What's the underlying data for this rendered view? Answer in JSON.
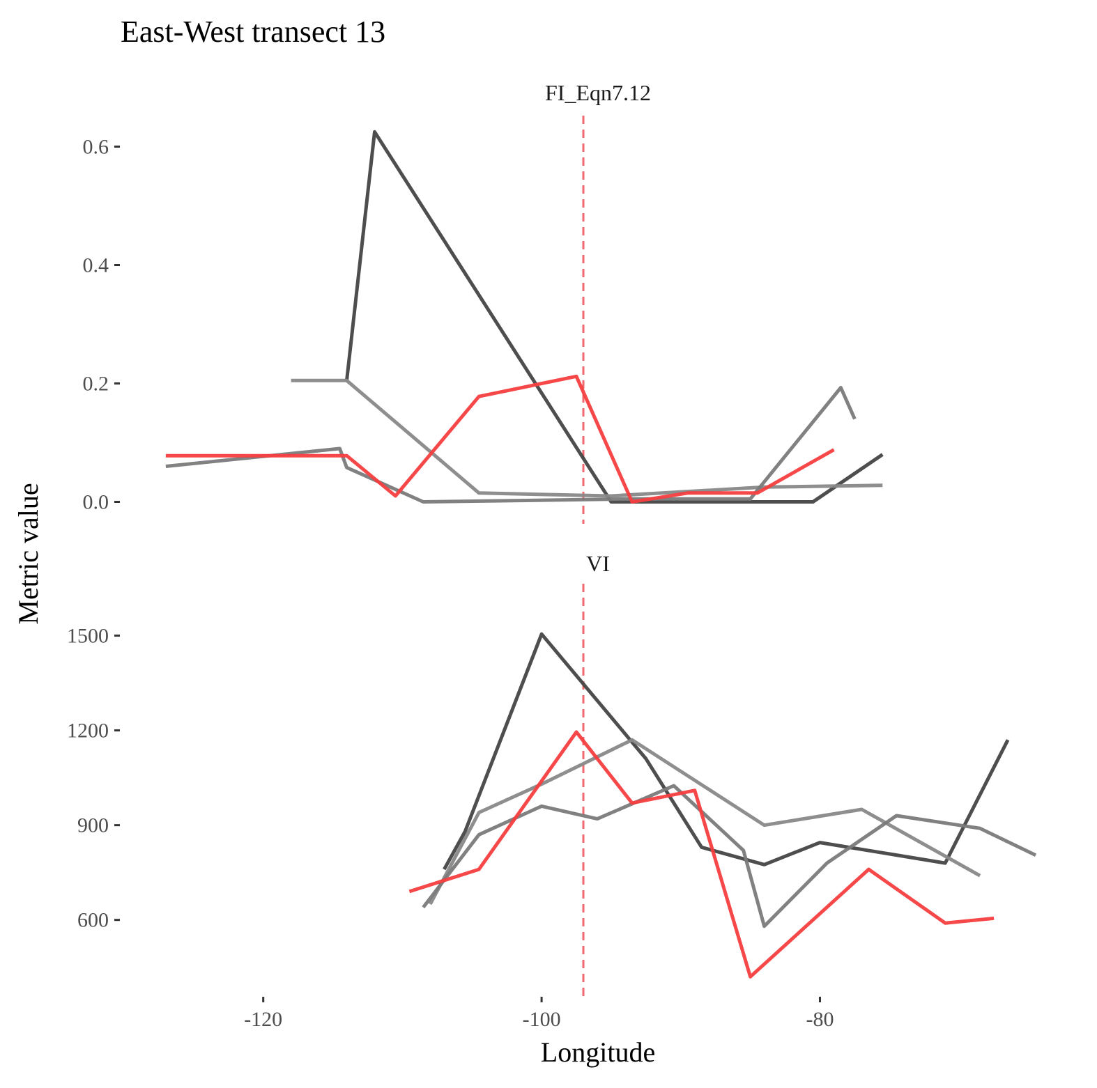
{
  "chart_data": {
    "type": "line",
    "title": "East-West transect 13",
    "xlabel": "Longitude",
    "ylabel": "Metric value",
    "xlim": [
      -130,
      -64
    ],
    "x_ticks": [
      -120,
      -100,
      -80
    ],
    "x_tick_labels": [
      "-120",
      "-100",
      "-80"
    ],
    "reference_line": {
      "x": -97,
      "color": "#f0696e",
      "style": "dashed"
    },
    "grid": false,
    "legend": "none",
    "panels": [
      {
        "strip_label": "FI_Eqn7.12",
        "ylim": [
          -0.03,
          0.65
        ],
        "y_ticks": [
          0.0,
          0.2,
          0.4,
          0.6
        ],
        "y_tick_labels": [
          "0.0",
          "0.2",
          "0.4",
          "0.6"
        ],
        "series": [
          {
            "color": "#444444",
            "points": [
              [
                -114,
                0.205
              ],
              [
                -112,
                0.625
              ],
              [
                -95,
                0.0
              ],
              [
                -80.5,
                0.0
              ],
              [
                -75.5,
                0.08
              ]
            ]
          },
          {
            "color": "#888888",
            "points": [
              [
                -118,
                0.205
              ],
              [
                -114,
                0.205
              ],
              [
                -104.5,
                0.015
              ],
              [
                -95,
                0.01
              ],
              [
                -84,
                0.025
              ],
              [
                -75.5,
                0.028
              ]
            ]
          },
          {
            "color": "#7a7a7a",
            "points": [
              [
                -127,
                0.06
              ],
              [
                -114.5,
                0.09
              ],
              [
                -114,
                0.058
              ],
              [
                -108.5,
                0.0
              ],
              [
                -93.5,
                0.005
              ],
              [
                -85,
                0.005
              ],
              [
                -78.5,
                0.193
              ],
              [
                -77.5,
                0.14
              ]
            ]
          },
          {
            "color": "#f53d3f",
            "points": [
              [
                -127,
                0.078
              ],
              [
                -114,
                0.078
              ],
              [
                -110.5,
                0.01
              ],
              [
                -104.5,
                0.178
              ],
              [
                -97.5,
                0.212
              ],
              [
                -93.5,
                0.0
              ],
              [
                -89.5,
                0.015
              ],
              [
                -84.5,
                0.015
              ],
              [
                -79,
                0.088
              ]
            ]
          }
        ]
      },
      {
        "strip_label": "VI",
        "ylim": [
          370,
          1660
        ],
        "y_ticks": [
          600,
          900,
          1200,
          1500
        ],
        "y_tick_labels": [
          "600",
          "900",
          "1200",
          "1500"
        ],
        "series": [
          {
            "color": "#444444",
            "points": [
              [
                -107,
                760
              ],
              [
                -105.5,
                880
              ],
              [
                -100,
                1505
              ],
              [
                -92.5,
                1110
              ],
              [
                -88.5,
                830
              ],
              [
                -84,
                775
              ],
              [
                -80,
                845
              ],
              [
                -71,
                780
              ],
              [
                -66.5,
                1170
              ]
            ]
          },
          {
            "color": "#888888",
            "points": [
              [
                -108,
                650
              ],
              [
                -104.5,
                940
              ],
              [
                -100,
                1030
              ],
              [
                -93.5,
                1170
              ],
              [
                -84,
                900
              ],
              [
                -77,
                950
              ],
              [
                -68.5,
                740
              ]
            ]
          },
          {
            "color": "#7a7a7a",
            "points": [
              [
                -108.5,
                640
              ],
              [
                -104.5,
                870
              ],
              [
                -100,
                960
              ],
              [
                -96,
                920
              ],
              [
                -90.5,
                1025
              ],
              [
                -85.5,
                820
              ],
              [
                -84,
                580
              ],
              [
                -79.5,
                780
              ],
              [
                -74.5,
                930
              ],
              [
                -68.5,
                890
              ],
              [
                -64.5,
                805
              ]
            ]
          },
          {
            "color": "#f53d3f",
            "points": [
              [
                -109.5,
                690
              ],
              [
                -104.5,
                760
              ],
              [
                -97.5,
                1195
              ],
              [
                -93.5,
                970
              ],
              [
                -89,
                1010
              ],
              [
                -85,
                420
              ],
              [
                -76.5,
                760
              ],
              [
                -71,
                590
              ],
              [
                -67.5,
                605
              ]
            ]
          }
        ]
      }
    ]
  }
}
